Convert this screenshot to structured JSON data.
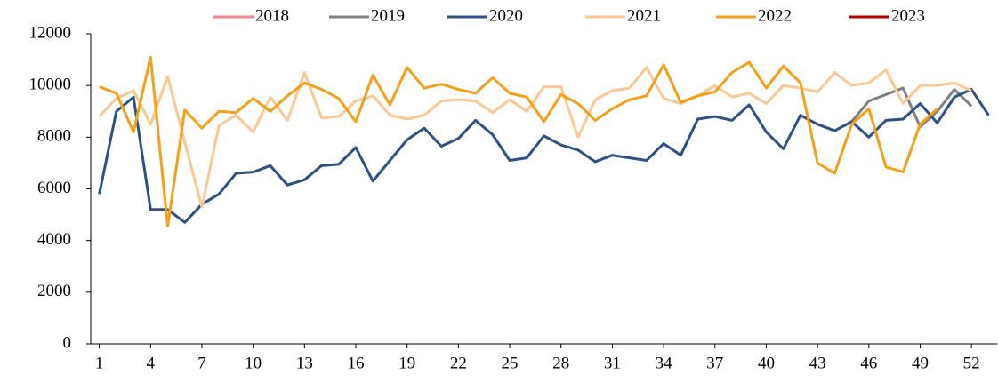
{
  "chart_data": {
    "type": "line",
    "x": [
      1,
      2,
      3,
      4,
      5,
      6,
      7,
      8,
      9,
      10,
      11,
      12,
      13,
      14,
      15,
      16,
      17,
      18,
      19,
      20,
      21,
      22,
      23,
      24,
      25,
      26,
      27,
      28,
      29,
      30,
      31,
      32,
      33,
      34,
      35,
      36,
      37,
      38,
      39,
      40,
      41,
      42,
      43,
      44,
      45,
      46,
      47,
      48,
      49,
      50,
      51,
      52,
      53
    ],
    "xlim": [
      0.5,
      53.5
    ],
    "xticks": [
      1,
      4,
      7,
      10,
      13,
      16,
      19,
      22,
      25,
      28,
      31,
      34,
      37,
      40,
      43,
      46,
      49,
      52
    ],
    "ylim": [
      0,
      12000
    ],
    "yticks": [
      0,
      2000,
      4000,
      6000,
      8000,
      10000,
      12000
    ],
    "legend": "top",
    "series": [
      {
        "name": "2018",
        "color": "#f4868a",
        "values": [
          null,
          null,
          null,
          null,
          null,
          null,
          null,
          null,
          null,
          null,
          null,
          null,
          null,
          null,
          null,
          null,
          null,
          null,
          null,
          null,
          null,
          null,
          null,
          null,
          null,
          null,
          null,
          null,
          null,
          null,
          null,
          null,
          null,
          null,
          null,
          null,
          null,
          null,
          null,
          null,
          null,
          null,
          null,
          null,
          null,
          null,
          null,
          null,
          null,
          null,
          null,
          null,
          null
        ]
      },
      {
        "name": "2019",
        "color": "#808080",
        "values": [
          null,
          null,
          null,
          null,
          null,
          null,
          null,
          null,
          null,
          null,
          null,
          null,
          null,
          null,
          null,
          null,
          null,
          null,
          null,
          null,
          null,
          null,
          null,
          null,
          null,
          null,
          null,
          null,
          null,
          null,
          null,
          null,
          null,
          null,
          null,
          null,
          null,
          null,
          null,
          null,
          null,
          null,
          null,
          null,
          8600,
          9400,
          9650,
          9900,
          8400,
          9000,
          9850,
          9200,
          null
        ]
      },
      {
        "name": "2020",
        "color": "#2e5283",
        "values": [
          5800,
          9000,
          9550,
          5200,
          5200,
          4700,
          5400,
          5800,
          6600,
          6650,
          6900,
          6150,
          6350,
          6900,
          6950,
          7600,
          6300,
          7100,
          7900,
          8350,
          7650,
          7950,
          8650,
          8100,
          7100,
          7200,
          8050,
          7700,
          7500,
          7050,
          7300,
          7200,
          7100,
          7750,
          7300,
          8700,
          8800,
          8650,
          9250,
          8200,
          7550,
          8850,
          8500,
          8250,
          8600,
          8000,
          8650,
          8700,
          9300,
          8550,
          9550,
          9850,
          8850
        ]
      },
      {
        "name": "2021",
        "color": "#fac895",
        "values": [
          8800,
          9500,
          9800,
          8500,
          10350,
          7800,
          5300,
          8450,
          8850,
          8200,
          9550,
          8650,
          10500,
          8750,
          8800,
          9400,
          9600,
          8850,
          8700,
          8850,
          9400,
          9450,
          9400,
          8950,
          9450,
          9000,
          9950,
          9950,
          8000,
          9450,
          9800,
          9900,
          10700,
          9500,
          9300,
          9600,
          10000,
          9550,
          9700,
          9300,
          10000,
          9900,
          9750,
          10500,
          10000,
          10100,
          10600,
          9300,
          10000,
          10000,
          10100,
          9800,
          null
        ]
      },
      {
        "name": "2022",
        "color": "#f5a01a",
        "values": [
          9950,
          9700,
          8200,
          11100,
          4550,
          9050,
          8350,
          9000,
          8950,
          9500,
          9000,
          9600,
          10100,
          9850,
          9500,
          8600,
          10400,
          9250,
          10700,
          9900,
          10050,
          9850,
          9700,
          10300,
          9700,
          9550,
          8600,
          9650,
          9300,
          8650,
          9100,
          9450,
          9600,
          10800,
          9350,
          9600,
          9750,
          10500,
          10900,
          9900,
          10750,
          10100,
          7000,
          6600,
          8500,
          9100,
          6850,
          6650,
          8500,
          9100,
          null,
          null,
          null
        ]
      },
      {
        "name": "2023",
        "color": "#b00000",
        "values": [
          null,
          null,
          null,
          null,
          null,
          null,
          null,
          null,
          null,
          null,
          null,
          null,
          null,
          null,
          null,
          null,
          null,
          null,
          null,
          null,
          null,
          null,
          null,
          null,
          null,
          null,
          null,
          null,
          null,
          null,
          null,
          null,
          null,
          null,
          null,
          null,
          null,
          null,
          null,
          null,
          null,
          null,
          null,
          null,
          null,
          null,
          null,
          null,
          null,
          null,
          null,
          null,
          null
        ]
      }
    ]
  }
}
